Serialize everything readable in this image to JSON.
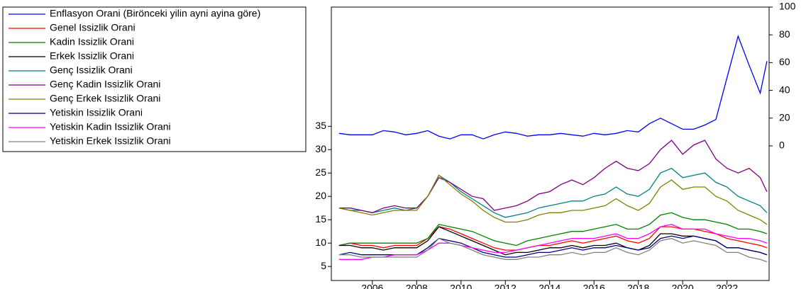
{
  "chart_data": {
    "type": "line",
    "x": [
      2004.5,
      2005,
      2005.5,
      2006,
      2006.5,
      2007,
      2007.5,
      2008,
      2008.5,
      2009,
      2009.5,
      2010,
      2010.5,
      2011,
      2011.5,
      2012,
      2012.5,
      2013,
      2013.5,
      2014,
      2014.5,
      2015,
      2015.5,
      2016,
      2016.5,
      2017,
      2017.5,
      2018,
      2018.5,
      2019,
      2019.5,
      2020,
      2020.5,
      2021,
      2021.5,
      2022,
      2022.5,
      2023,
      2023.5,
      2023.8
    ],
    "xlim": [
      2004.15,
      2023.9
    ],
    "xticks": [
      2006,
      2008,
      2010,
      2012,
      2014,
      2016,
      2018,
      2020,
      2022
    ],
    "ylim": [
      2,
      60.5
    ],
    "yticks": [
      5,
      10,
      15,
      20,
      25,
      30,
      35
    ],
    "y2lim": [
      -97,
      100
    ],
    "y2ticks": [
      0,
      20,
      40,
      60,
      80,
      100
    ],
    "series": [
      {
        "name": "Enflasyon Orani (Birönceki yilin ayni ayina göre)",
        "color": "#0000ff",
        "axis": "y2",
        "values": [
          9,
          8,
          8,
          8,
          11,
          10,
          8,
          9,
          11,
          7,
          5,
          8,
          8,
          5,
          8,
          10,
          9,
          7,
          8,
          8,
          9,
          8,
          7,
          9,
          8,
          9,
          11,
          10,
          16,
          20,
          16,
          12,
          12,
          15,
          19,
          49,
          79,
          58,
          38,
          61
        ]
      },
      {
        "name": "Genel Issizlik Orani",
        "color": "#ff0000",
        "values": [
          9.5,
          10,
          9.5,
          9.5,
          9,
          9.5,
          9.5,
          9.5,
          11,
          13.5,
          13,
          12,
          11,
          10,
          9,
          8.5,
          8.5,
          9,
          9.5,
          9.5,
          10,
          10.5,
          10,
          10.5,
          11,
          11.5,
          10.5,
          10,
          11,
          13.5,
          13.5,
          13,
          13,
          12.5,
          12,
          11,
          10.5,
          10,
          9.5,
          9
        ]
      },
      {
        "name": "Kadin Issizlik Orani",
        "color": "#008000",
        "values": [
          9.5,
          10,
          10,
          10,
          10,
          10,
          10,
          10,
          11,
          14,
          13.5,
          13,
          12.5,
          11.5,
          10.5,
          10,
          9.5,
          10.5,
          11,
          11.5,
          12,
          12.5,
          12.5,
          13,
          13.5,
          14,
          13,
          13,
          14,
          16,
          16.5,
          15.5,
          15,
          15,
          14.5,
          14,
          13,
          13,
          12.5,
          12
        ]
      },
      {
        "name": "Erkek Issizlik Orani",
        "color": "#000000",
        "values": [
          9.5,
          9.5,
          9,
          9,
          8.5,
          9,
          9,
          9,
          10.5,
          13.5,
          12.5,
          11.5,
          10.5,
          9.5,
          8.5,
          7.5,
          8,
          8,
          8.5,
          9,
          9,
          9.5,
          9,
          9.5,
          9.5,
          10,
          9,
          8.5,
          9.5,
          12,
          12,
          11.5,
          11.5,
          11,
          10.5,
          9,
          9,
          8.5,
          8,
          7.5
        ]
      },
      {
        "name": "Genç Issizlik Orani",
        "color": "#008080",
        "values": [
          17.5,
          17,
          17,
          16.5,
          17,
          17.5,
          17,
          17.5,
          20,
          24.5,
          23,
          21,
          19.5,
          18,
          16.5,
          15.5,
          16,
          16.5,
          17.5,
          18,
          18.5,
          19,
          19,
          20,
          20.5,
          22,
          20.5,
          20,
          21.5,
          25,
          26,
          24,
          24.5,
          25,
          23,
          22,
          20,
          19,
          18,
          16.5
        ]
      },
      {
        "name": "Genç Kadin Issizlik Orani",
        "color": "#800080",
        "values": [
          17.5,
          17.5,
          17,
          16.5,
          17.5,
          18,
          17.5,
          17.5,
          20,
          24,
          23,
          21.5,
          20,
          19.5,
          17,
          17.5,
          18,
          19,
          20.5,
          21,
          22.5,
          23.5,
          22.5,
          24,
          26,
          27.5,
          26,
          25.5,
          27,
          30,
          32,
          29,
          31,
          32,
          28,
          26,
          25,
          26,
          24,
          21
        ]
      },
      {
        "name": "Genç Erkek Issizlik Orani",
        "color": "#808000",
        "values": [
          17.5,
          17,
          16.5,
          16,
          16.5,
          17,
          17,
          17,
          20,
          24.5,
          22.5,
          20.5,
          19,
          17,
          15.5,
          14.5,
          14.5,
          15,
          16,
          16.5,
          16.5,
          17,
          17,
          17.5,
          18,
          19.5,
          18,
          17,
          18.5,
          22,
          23.5,
          21.5,
          22,
          22,
          20,
          19,
          17,
          16,
          15,
          14
        ]
      },
      {
        "name": "Yetiskin Issizlik Orani",
        "color": "#000080",
        "values": [
          7.5,
          8,
          7.5,
          7.5,
          7.5,
          7.5,
          7.5,
          7.5,
          9,
          11,
          10.5,
          10,
          9,
          8,
          7.5,
          7,
          7,
          7.5,
          8,
          8,
          8.5,
          9,
          8.5,
          9,
          9,
          9.5,
          9,
          8.5,
          9,
          11,
          11.5,
          11,
          11.5,
          11,
          10.5,
          9,
          9,
          8.5,
          8,
          7.5
        ]
      },
      {
        "name": "Yetiskin Kadin Issizlik Orani",
        "color": "#ff00ff",
        "values": [
          6.5,
          6.5,
          6.5,
          7,
          7,
          7.5,
          7.5,
          7.5,
          8.5,
          10,
          10,
          9.5,
          9,
          8.5,
          8,
          8,
          8.5,
          9,
          9.5,
          10,
          10.5,
          11,
          11,
          11,
          11.5,
          12,
          11,
          11,
          12,
          13.5,
          14,
          13,
          13,
          13,
          12,
          11.5,
          11,
          11,
          10.5,
          10
        ]
      },
      {
        "name": "Yetiskin Erkek Issizlik Orani",
        "color": "#808080",
        "values": [
          7.5,
          7.5,
          7,
          7,
          7,
          7,
          7,
          7,
          8.5,
          11,
          10,
          9.5,
          8.5,
          7.5,
          7,
          6.5,
          6.5,
          7,
          7,
          7.5,
          7.5,
          8,
          7.5,
          8,
          8,
          9,
          8,
          7.5,
          8.5,
          10.5,
          11,
          10,
          10.5,
          10,
          9.5,
          8,
          8,
          7,
          6.5,
          6
        ]
      }
    ]
  }
}
